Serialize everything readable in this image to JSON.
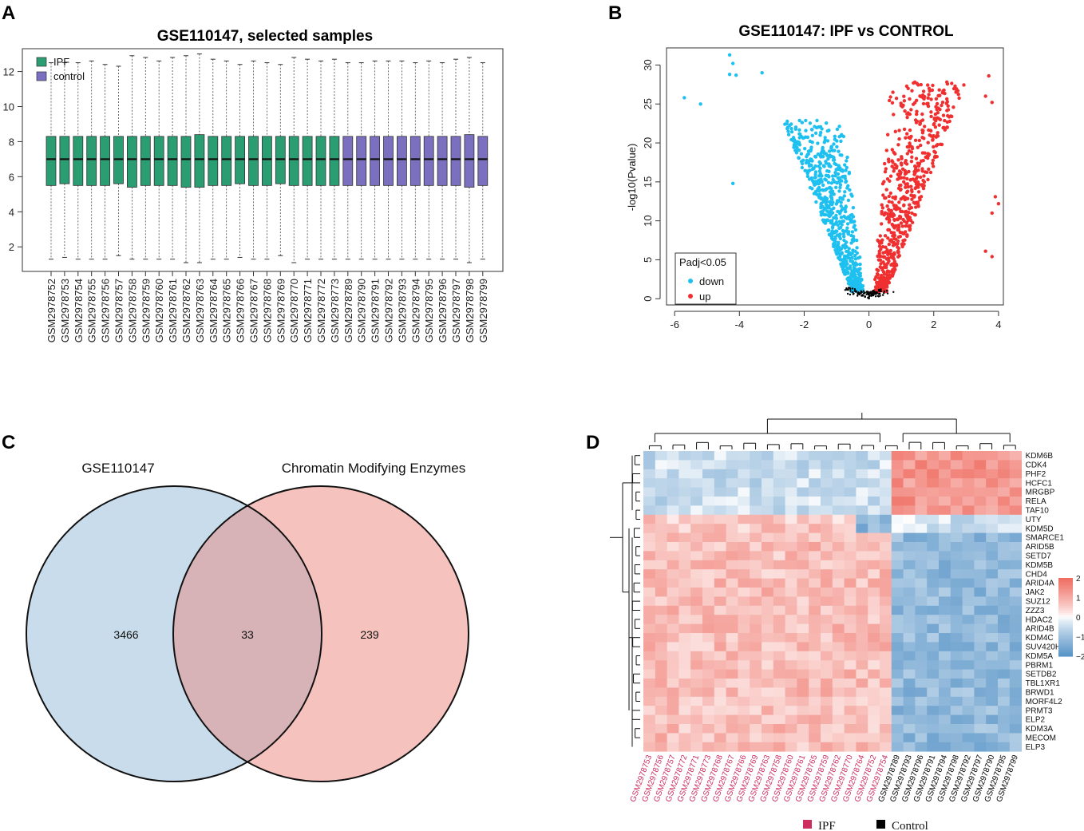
{
  "panel_labels": [
    "A",
    "B",
    "C",
    "D"
  ],
  "colors": {
    "ipf_box": "#2a9d73",
    "control_box": "#7b6fbf",
    "down": "#1ec0f0",
    "up": "#f03030",
    "ns": "#000000",
    "venn_left": "#c9dceb",
    "venn_right": "#f6c2be",
    "venn_overlap": "#d7b3b7",
    "heat_high": "#ef6f64",
    "heat_mid": "#ffffff",
    "heat_low": "#5b96c8",
    "ipf_label": "#cc2c5e",
    "control_label": "#000000"
  },
  "chart_data": [
    {
      "type": "boxplot",
      "panel": "A",
      "title": "GSE110147, selected samples",
      "xlabel": "",
      "ylabel": "",
      "ylim": [
        0.6,
        13.3
      ],
      "yticks": [
        2,
        4,
        6,
        8,
        10,
        12
      ],
      "legend": [
        {
          "name": "IPF",
          "group": "IPF"
        },
        {
          "name": "control",
          "group": "control"
        }
      ],
      "legend_position": "top-left",
      "samples": [
        "GSM2978752",
        "GSM2978753",
        "GSM2978754",
        "GSM2978755",
        "GSM2978756",
        "GSM2978757",
        "GSM2978758",
        "GSM2978759",
        "GSM2978760",
        "GSM2978761",
        "GSM2978762",
        "GSM2978763",
        "GSM2978764",
        "GSM2978765",
        "GSM2978766",
        "GSM2978767",
        "GSM2978768",
        "GSM2978769",
        "GSM2978770",
        "GSM2978771",
        "GSM2978772",
        "GSM2978773",
        "GSM2978789",
        "GSM2978790",
        "GSM2978791",
        "GSM2978792",
        "GSM2978793",
        "GSM2978794",
        "GSM2978795",
        "GSM2978796",
        "GSM2978797",
        "GSM2978798",
        "GSM2978799"
      ],
      "groups": [
        "IPF",
        "IPF",
        "IPF",
        "IPF",
        "IPF",
        "IPF",
        "IPF",
        "IPF",
        "IPF",
        "IPF",
        "IPF",
        "IPF",
        "IPF",
        "IPF",
        "IPF",
        "IPF",
        "IPF",
        "IPF",
        "IPF",
        "IPF",
        "IPF",
        "IPF",
        "control",
        "control",
        "control",
        "control",
        "control",
        "control",
        "control",
        "control",
        "control",
        "control",
        "control"
      ],
      "q1": [
        5.5,
        5.6,
        5.5,
        5.5,
        5.5,
        5.6,
        5.4,
        5.5,
        5.5,
        5.5,
        5.4,
        5.4,
        5.5,
        5.5,
        5.6,
        5.5,
        5.5,
        5.6,
        5.5,
        5.5,
        5.5,
        5.5,
        5.5,
        5.5,
        5.5,
        5.5,
        5.5,
        5.5,
        5.5,
        5.5,
        5.5,
        5.4,
        5.5
      ],
      "median": [
        7.0,
        7.0,
        7.0,
        7.0,
        7.0,
        7.0,
        7.0,
        7.0,
        7.0,
        7.0,
        7.0,
        7.0,
        7.0,
        7.0,
        7.0,
        7.0,
        7.0,
        7.0,
        7.0,
        7.0,
        7.0,
        7.0,
        7.0,
        7.0,
        7.0,
        7.0,
        7.0,
        7.0,
        7.0,
        7.0,
        7.0,
        7.0,
        7.0
      ],
      "q3": [
        8.3,
        8.3,
        8.3,
        8.3,
        8.3,
        8.3,
        8.3,
        8.3,
        8.3,
        8.3,
        8.3,
        8.4,
        8.3,
        8.3,
        8.3,
        8.3,
        8.3,
        8.3,
        8.3,
        8.3,
        8.3,
        8.3,
        8.3,
        8.3,
        8.3,
        8.3,
        8.3,
        8.3,
        8.3,
        8.3,
        8.3,
        8.4,
        8.3
      ],
      "whisker_low": [
        1.3,
        1.4,
        1.3,
        1.3,
        1.3,
        1.5,
        1.3,
        1.3,
        1.3,
        1.3,
        1.1,
        1.1,
        1.3,
        1.3,
        1.4,
        1.3,
        1.3,
        1.5,
        1.1,
        1.3,
        1.3,
        1.3,
        1.3,
        1.3,
        1.3,
        1.3,
        1.3,
        1.3,
        1.3,
        1.3,
        1.3,
        1.1,
        1.3
      ],
      "whisker_high": [
        12.5,
        12.5,
        12.5,
        12.6,
        12.4,
        12.3,
        12.9,
        12.8,
        12.6,
        12.8,
        12.9,
        13.0,
        12.7,
        12.6,
        12.4,
        12.6,
        12.5,
        12.4,
        12.8,
        12.7,
        12.6,
        12.7,
        12.5,
        12.5,
        12.6,
        12.6,
        12.6,
        12.5,
        12.6,
        12.5,
        12.7,
        12.8,
        12.5
      ]
    },
    {
      "type": "scatter",
      "panel": "B",
      "title": "GSE110147: IPF vs CONTROL",
      "xlabel": "",
      "ylabel": "-log10(Pvalue)",
      "xlim": [
        -6.25,
        4.15
      ],
      "ylim": [
        -0.8,
        32.2
      ],
      "xticks": [
        -6,
        -4,
        -2,
        0,
        2,
        4
      ],
      "yticks": [
        0,
        5,
        10,
        15,
        20,
        25,
        30
      ],
      "legend_title": "Padj<0.05",
      "legend_position": "bottom-left",
      "series": [
        {
          "name": "down",
          "outliers": [
            [
              -4.3,
              31.3
            ],
            [
              -4.2,
              30.2
            ],
            [
              -4.3,
              28.8
            ],
            [
              -4.1,
              28.7
            ],
            [
              -5.7,
              25.8
            ],
            [
              -5.2,
              25.0
            ],
            [
              -3.3,
              29.0
            ],
            [
              -4.2,
              14.8
            ]
          ]
        },
        {
          "name": "up",
          "outliers": [
            [
              3.7,
              28.6
            ],
            [
              3.6,
              26.0
            ],
            [
              3.8,
              25.2
            ],
            [
              4.0,
              12.2
            ],
            [
              3.8,
              11.0
            ],
            [
              3.9,
              13.1
            ],
            [
              3.6,
              6.1
            ],
            [
              3.8,
              5.4
            ]
          ]
        }
      ]
    },
    {
      "type": "venn",
      "panel": "C",
      "sets": [
        "GSE110147",
        "Chromatin Modifying Enzymes"
      ],
      "values": {
        "GSE110147_only": 3466,
        "overlap": 33,
        "Chromatin_only": 239
      }
    },
    {
      "type": "heatmap",
      "panel": "D",
      "rows": [
        "KDM6B",
        "CDK4",
        "PHF2",
        "HCFC1",
        "MRGBP",
        "RELA",
        "TAF10",
        "UTY",
        "KDM5D",
        "SMARCE1",
        "ARID5B",
        "SETD7",
        "KDM5B",
        "CHD4",
        "ARID4A",
        "JAK2",
        "SUZ12",
        "ZZZ3",
        "HDAC2",
        "ARID4B",
        "KDM4C",
        "SUV420H1",
        "KDM5A",
        "PBRM1",
        "SETDB2",
        "TBL1XR1",
        "BRWD1",
        "MORF4L2",
        "PRMT3",
        "ELP2",
        "KDM3A",
        "MECOM",
        "ELP3"
      ],
      "columns": [
        "GSM2978753",
        "GSM2978756",
        "GSM2978757",
        "GSM2978772",
        "GSM2978771",
        "GSM2978773",
        "GSM2978768",
        "GSM2978767",
        "GSM2978766",
        "GSM2978769",
        "GSM2978763",
        "GSM2978758",
        "GSM2978760",
        "GSM2978761",
        "GSM2978765",
        "GSM2978759",
        "GSM2978762",
        "GSM2978770",
        "GSM2978764",
        "GSM2978752",
        "GSM2978754",
        "GSM2978789",
        "GSM2978793",
        "GSM2978796",
        "GSM2978791",
        "GSM2978794",
        "GSM2978798",
        "GSM2978792",
        "GSM2978797",
        "GSM2978790",
        "GSM2978795",
        "GSM2978799"
      ],
      "column_groups": [
        "IPF",
        "IPF",
        "IPF",
        "IPF",
        "IPF",
        "IPF",
        "IPF",
        "IPF",
        "IPF",
        "IPF",
        "IPF",
        "IPF",
        "IPF",
        "IPF",
        "IPF",
        "IPF",
        "IPF",
        "IPF",
        "IPF",
        "IPF",
        "IPF",
        "Control",
        "Control",
        "Control",
        "Control",
        "Control",
        "Control",
        "Control",
        "Control",
        "Control",
        "Control",
        "Control"
      ],
      "color_scale": {
        "min": -2,
        "max": 2,
        "ticks": [
          2,
          1,
          0,
          -1,
          -2
        ],
        "tick_labels": [
          "2",
          "1",
          "0",
          "−1",
          "−2"
        ]
      },
      "group_legend": [
        {
          "name": "IPF"
        },
        {
          "name": "Control"
        }
      ],
      "pattern": {
        "rows_1_7": "IPF low (~-0.5), Control high (~+1.3)",
        "rows_8_9": "IPF high (~+0.6), Control low; last three IPF columns low",
        "rows_10_33": "IPF high (~+0.7), Control low (~-1.2)"
      }
    }
  ]
}
